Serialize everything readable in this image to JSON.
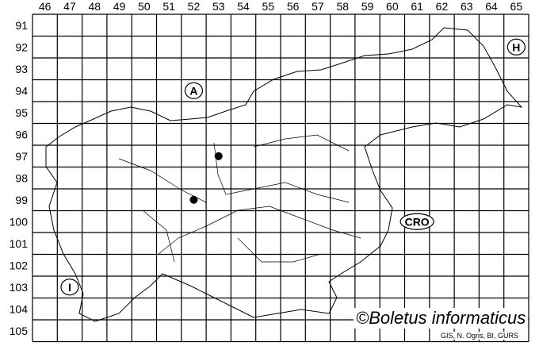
{
  "map": {
    "columns": [
      "46",
      "47",
      "48",
      "49",
      "50",
      "51",
      "52",
      "53",
      "54",
      "55",
      "56",
      "57",
      "58",
      "59",
      "60",
      "61",
      "62",
      "63",
      "64",
      "65"
    ],
    "rows": [
      "91",
      "92",
      "93",
      "94",
      "95",
      "96",
      "97",
      "98",
      "99",
      "100",
      "101",
      "102",
      "103",
      "104",
      "105"
    ],
    "countries": [
      {
        "code": "A",
        "col": "52",
        "row": "94"
      },
      {
        "code": "H",
        "col": "65",
        "row": "92"
      },
      {
        "code": "CRO",
        "col": "61",
        "row": "100"
      },
      {
        "code": "I",
        "col": "47",
        "row": "103"
      }
    ],
    "records": [
      {
        "col": "53",
        "row": "97"
      },
      {
        "col": "52",
        "row": "99"
      }
    ],
    "grid_color": "#000000",
    "record_color": "#000000"
  },
  "credit": "©Boletus informaticus",
  "source": "GIS, N. Ogris, BI, GURS"
}
